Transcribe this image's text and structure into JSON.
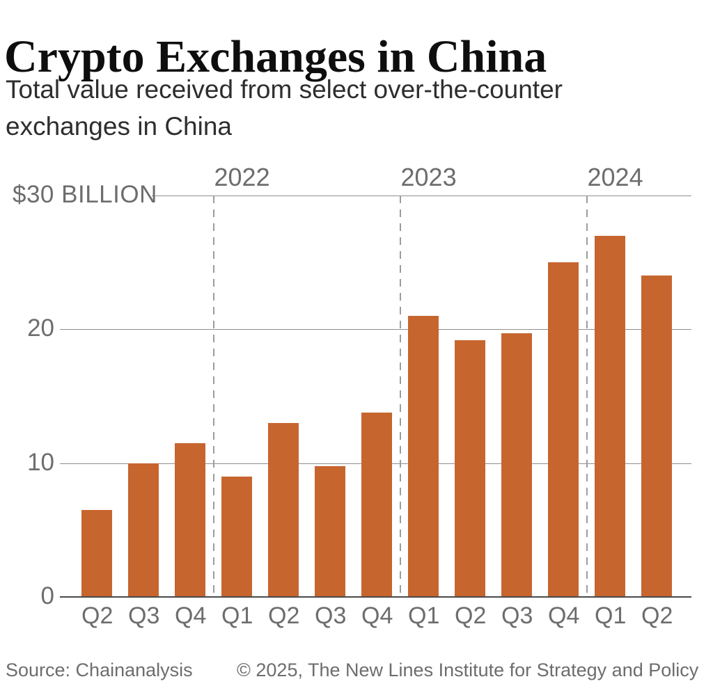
{
  "header": {
    "title": "Crypto Exchanges in China",
    "subtitle": "Total value received from select over-the-counter exchanges in China"
  },
  "footer": {
    "source": "Source: Chainanalysis",
    "copyright": "© 2025, The New Lines Institute for Strategy and Policy"
  },
  "chart_data": {
    "type": "bar",
    "title": "Crypto Exchanges in China",
    "subtitle": "Total value received from select over-the-counter exchanges in China",
    "categories": [
      "Q2",
      "Q3",
      "Q4",
      "Q1",
      "Q2",
      "Q3",
      "Q4",
      "Q1",
      "Q2",
      "Q3",
      "Q4",
      "Q1",
      "Q2"
    ],
    "values": [
      6.5,
      10,
      11.5,
      9,
      13,
      9.8,
      13.8,
      21,
      19.2,
      19.7,
      25,
      27,
      24
    ],
    "units": "billion USD",
    "ylim": [
      0,
      30
    ],
    "y_ticks": [
      {
        "value": 30,
        "label": "$30 BILLION"
      },
      {
        "value": 20,
        "label": "20"
      },
      {
        "value": 10,
        "label": "10"
      },
      {
        "value": 0,
        "label": "0"
      }
    ],
    "year_markers": [
      {
        "label": "2022",
        "before_index": 3
      },
      {
        "label": "2023",
        "before_index": 7
      },
      {
        "label": "2024",
        "before_index": 11
      }
    ],
    "bar_color": "#c7652f",
    "grid": true,
    "legend_position": "none"
  },
  "colors": {
    "bar": "#c7652f",
    "gridline": "#8f8f8f",
    "baseline": "#4a4a4a",
    "separator": "#9c9c9c",
    "muted_text": "#6d6d6d",
    "title_text": "#0e0e0e",
    "subtitle_text": "#2e2e2e"
  }
}
